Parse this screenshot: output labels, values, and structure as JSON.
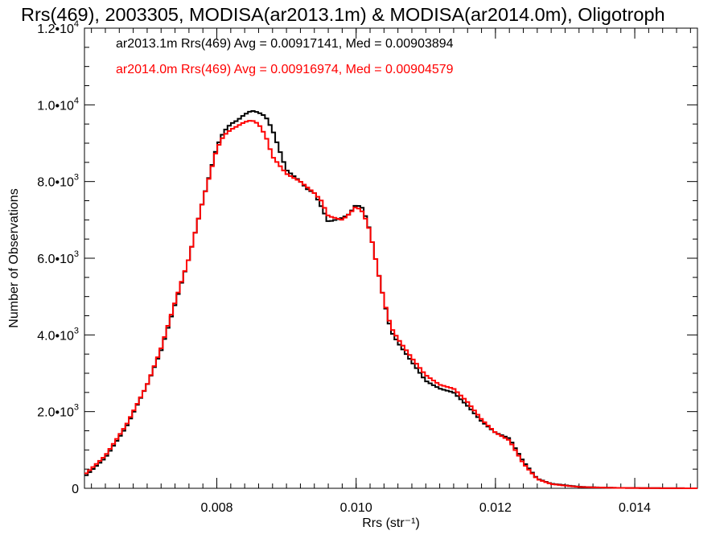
{
  "chart_data": {
    "type": "line",
    "title": "Rrs(469), 2003305, MODISA(ar2013.1m) & MODISA(ar2014.0m), Oligotroph",
    "xlabel": "Rrs (str⁻¹)",
    "ylabel": "Number of Observations",
    "xlim": [
      0.0061,
      0.0149
    ],
    "ylim": [
      0,
      12000
    ],
    "x_ticks": [
      {
        "value": 0.008,
        "label": "0.008"
      },
      {
        "value": 0.01,
        "label": "0.010"
      },
      {
        "value": 0.012,
        "label": "0.012"
      },
      {
        "value": 0.014,
        "label": "0.014"
      }
    ],
    "y_ticks": [
      {
        "value": 0,
        "mant": "0",
        "exp": ""
      },
      {
        "value": 2000,
        "mant": "2.0•10",
        "exp": "3"
      },
      {
        "value": 4000,
        "mant": "4.0•10",
        "exp": "3"
      },
      {
        "value": 6000,
        "mant": "6.0•10",
        "exp": "3"
      },
      {
        "value": 8000,
        "mant": "8.0•10",
        "exp": "3"
      },
      {
        "value": 10000,
        "mant": "1.0•10",
        "exp": "4"
      },
      {
        "value": 12000,
        "mant": "1.2•10",
        "exp": "4"
      }
    ],
    "grid": false,
    "legend": "top-left",
    "annotations": [
      {
        "text": "ar2013.1m Rrs(469) Avg = 0.00917141, Med = 0.00903894",
        "color": "#000000"
      },
      {
        "text": "ar2014.0m Rrs(469) Avg = 0.00916974, Med = 0.00904579",
        "color": "#ff0000"
      }
    ],
    "series": [
      {
        "color": "#000000",
        "x": [
          0.0061,
          0.0064,
          0.0067,
          0.007,
          0.0072,
          0.0074,
          0.0076,
          0.0078,
          0.008,
          0.0081,
          0.0082,
          0.0083,
          0.0084,
          0.0085,
          0.0086,
          0.0087,
          0.0088,
          0.009,
          0.0092,
          0.0093,
          0.0094,
          0.0095,
          0.0096,
          0.0097,
          0.0098,
          0.0099,
          0.01,
          0.0101,
          0.0102,
          0.0103,
          0.0104,
          0.0105,
          0.0106,
          0.0108,
          0.011,
          0.0112,
          0.0114,
          0.0116,
          0.0118,
          0.012,
          0.0122,
          0.0124,
          0.0126,
          0.0128,
          0.013,
          0.0132,
          0.0135,
          0.0138,
          0.0142,
          0.0145,
          0.0149
        ],
        "y": [
          300,
          800,
          1600,
          2700,
          3600,
          4800,
          6000,
          7500,
          8900,
          9300,
          9500,
          9600,
          9750,
          9850,
          9800,
          9700,
          9350,
          8300,
          8000,
          7800,
          7700,
          7350,
          6950,
          7000,
          7050,
          7150,
          7400,
          7300,
          6700,
          5800,
          4900,
          4100,
          3800,
          3300,
          2800,
          2600,
          2500,
          2150,
          1750,
          1450,
          1300,
          700,
          250,
          120,
          80,
          40,
          20,
          10,
          5,
          3,
          0
        ]
      },
      {
        "color": "#ff0000",
        "x": [
          0.0061,
          0.0064,
          0.0067,
          0.007,
          0.0072,
          0.0074,
          0.0076,
          0.0078,
          0.008,
          0.0081,
          0.0082,
          0.0083,
          0.0084,
          0.0085,
          0.0086,
          0.0087,
          0.0088,
          0.009,
          0.0092,
          0.0093,
          0.0094,
          0.0095,
          0.0096,
          0.0097,
          0.0098,
          0.0099,
          0.01,
          0.0101,
          0.0102,
          0.0103,
          0.0104,
          0.0105,
          0.0106,
          0.0108,
          0.011,
          0.0112,
          0.0114,
          0.0116,
          0.0118,
          0.012,
          0.0122,
          0.0124,
          0.0126,
          0.0128,
          0.013,
          0.0132,
          0.0135,
          0.0138,
          0.0142,
          0.0145,
          0.0149
        ],
        "y": [
          350,
          850,
          1650,
          2700,
          3650,
          4850,
          6000,
          7500,
          8850,
          9200,
          9350,
          9450,
          9550,
          9600,
          9500,
          9200,
          8650,
          8200,
          8000,
          7850,
          7700,
          7500,
          7100,
          7050,
          7000,
          7150,
          7350,
          7200,
          6700,
          5800,
          4900,
          4200,
          3900,
          3400,
          2950,
          2700,
          2600,
          2250,
          1800,
          1450,
          1250,
          650,
          240,
          110,
          70,
          35,
          20,
          10,
          5,
          3,
          0
        ]
      }
    ]
  }
}
